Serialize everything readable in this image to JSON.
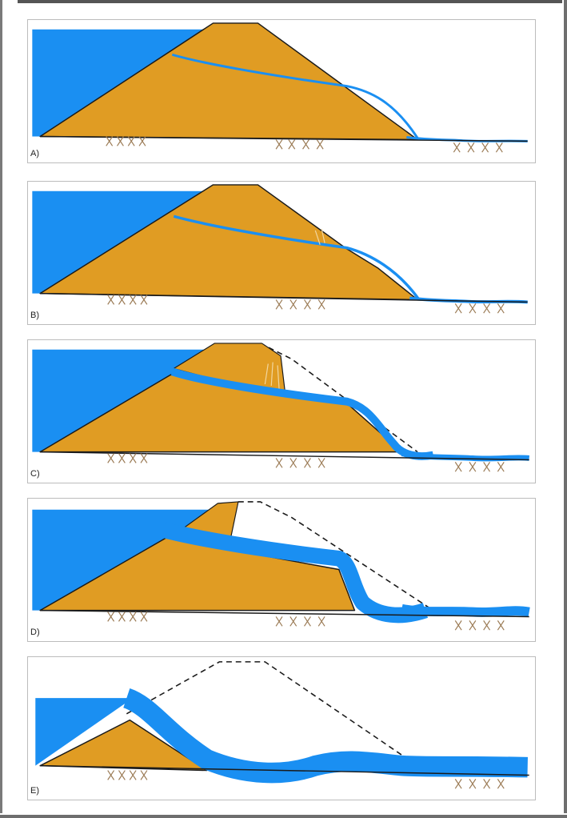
{
  "colors": {
    "water": "#1a8ff2",
    "embankment": "#e09c23",
    "outline": "#1a1a1a",
    "foundation_marks": "#9b7b55",
    "crack": "#f2d7a0"
  },
  "stages": [
    {
      "label": "A)"
    },
    {
      "label": "B)"
    },
    {
      "label": "C)"
    },
    {
      "label": "D)"
    },
    {
      "label": "E)"
    }
  ]
}
